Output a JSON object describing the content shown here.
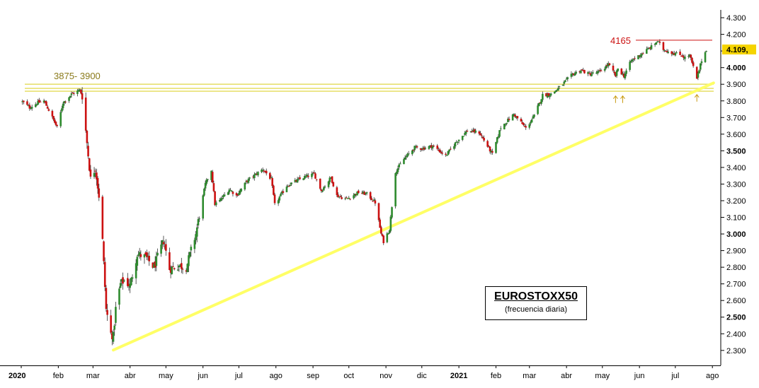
{
  "chart_data": {
    "type": "candlestick",
    "title": "EUROSTOXX50",
    "subtitle": "(frecuencia diaria)",
    "ylim": [
      2210,
      4330
    ],
    "xlim": [
      "2020-01-01",
      "2021-08-08"
    ],
    "yticks": [
      {
        "value": 2300,
        "label": "2.300",
        "bold": false
      },
      {
        "value": 2400,
        "label": "2.400",
        "bold": false
      },
      {
        "value": 2500,
        "label": "2.500",
        "bold": true
      },
      {
        "value": 2600,
        "label": "2.600",
        "bold": false
      },
      {
        "value": 2700,
        "label": "2.700",
        "bold": false
      },
      {
        "value": 2800,
        "label": "2.800",
        "bold": false
      },
      {
        "value": 2900,
        "label": "2.900",
        "bold": false
      },
      {
        "value": 3000,
        "label": "3.000",
        "bold": true
      },
      {
        "value": 3100,
        "label": "3.100",
        "bold": false
      },
      {
        "value": 3200,
        "label": "3.200",
        "bold": false
      },
      {
        "value": 3300,
        "label": "3.300",
        "bold": false
      },
      {
        "value": 3400,
        "label": "3.400",
        "bold": false
      },
      {
        "value": 3500,
        "label": "3.500",
        "bold": true
      },
      {
        "value": 3600,
        "label": "3.600",
        "bold": false
      },
      {
        "value": 3700,
        "label": "3.700",
        "bold": false
      },
      {
        "value": 3800,
        "label": "3.800",
        "bold": false
      },
      {
        "value": 3900,
        "label": "3.900",
        "bold": false
      },
      {
        "value": 4000,
        "label": "4.000",
        "bold": true
      },
      {
        "value": 4100,
        "label": "4.100",
        "bold": false
      },
      {
        "value": 4200,
        "label": "4.200",
        "bold": false
      },
      {
        "value": 4300,
        "label": "4.300",
        "bold": false
      }
    ],
    "xticks": [
      {
        "date": "2020-01-01",
        "label": "2020",
        "bold": true
      },
      {
        "date": "2020-02-01",
        "label": "feb",
        "bold": false
      },
      {
        "date": "2020-03-01",
        "label": "mar",
        "bold": false
      },
      {
        "date": "2020-04-01",
        "label": "abr",
        "bold": false
      },
      {
        "date": "2020-05-01",
        "label": "may",
        "bold": false
      },
      {
        "date": "2020-06-01",
        "label": "jun",
        "bold": false
      },
      {
        "date": "2020-07-01",
        "label": "jul",
        "bold": false
      },
      {
        "date": "2020-08-01",
        "label": "ago",
        "bold": false
      },
      {
        "date": "2020-09-01",
        "label": "sep",
        "bold": false
      },
      {
        "date": "2020-10-01",
        "label": "oct",
        "bold": false
      },
      {
        "date": "2020-11-01",
        "label": "nov",
        "bold": false
      },
      {
        "date": "2020-12-01",
        "label": "dic",
        "bold": false
      },
      {
        "date": "2021-01-01",
        "label": "2021",
        "bold": true
      },
      {
        "date": "2021-02-01",
        "label": "feb",
        "bold": false
      },
      {
        "date": "2021-03-01",
        "label": "mar",
        "bold": false
      },
      {
        "date": "2021-04-01",
        "label": "abr",
        "bold": false
      },
      {
        "date": "2021-05-01",
        "label": "may",
        "bold": false
      },
      {
        "date": "2021-06-01",
        "label": "jun",
        "bold": false
      },
      {
        "date": "2021-07-01",
        "label": "jul",
        "bold": false
      },
      {
        "date": "2021-08-01",
        "label": "ago",
        "bold": false
      }
    ],
    "last_price": {
      "value": 4109,
      "label": "4.109,",
      "color": "#f5d400"
    },
    "support_zone": {
      "label": "3875- 3900",
      "levels": [
        3858,
        3875,
        3900
      ],
      "color": "#e8e070"
    },
    "resistance": {
      "label": "4165",
      "value": 4165,
      "from": "2021-06-15",
      "to": "2021-07-30",
      "color": "#cc1111"
    },
    "trendline": {
      "from": {
        "date": "2020-03-18",
        "value": 2302
      },
      "to": {
        "date": "2021-08-02",
        "value": 3908
      },
      "color": "#ffff66"
    },
    "arrows": [
      {
        "date": "2021-05-12",
        "value": 3830
      },
      {
        "date": "2021-05-18",
        "value": 3830
      },
      {
        "date": "2021-07-19",
        "value": 3838
      }
    ],
    "colors": {
      "up": "#2e8b2e",
      "down": "#cc1111",
      "wick": "#333333",
      "olive_text": "#8a7a1a"
    },
    "waypoints": [
      [
        "2020-01-02",
        3795
      ],
      [
        "2020-01-08",
        3760
      ],
      [
        "2020-01-15",
        3790
      ],
      [
        "2020-01-20",
        3800
      ],
      [
        "2020-01-24",
        3745
      ],
      [
        "2020-01-31",
        3640
      ],
      [
        "2020-02-05",
        3790
      ],
      [
        "2020-02-12",
        3840
      ],
      [
        "2020-02-19",
        3865
      ],
      [
        "2020-02-21",
        3830
      ],
      [
        "2020-02-24",
        3620
      ],
      [
        "2020-02-28",
        3330
      ],
      [
        "2020-03-03",
        3400
      ],
      [
        "2020-03-06",
        3230
      ],
      [
        "2020-03-09",
        2960
      ],
      [
        "2020-03-12",
        2545
      ],
      [
        "2020-03-16",
        2400
      ],
      [
        "2020-03-18",
        2385
      ],
      [
        "2020-03-20",
        2550
      ],
      [
        "2020-03-24",
        2700
      ],
      [
        "2020-03-27",
        2720
      ],
      [
        "2020-04-01",
        2690
      ],
      [
        "2020-04-07",
        2880
      ],
      [
        "2020-04-14",
        2860
      ],
      [
        "2020-04-21",
        2800
      ],
      [
        "2020-04-29",
        2960
      ],
      [
        "2020-05-04",
        2790
      ],
      [
        "2020-05-12",
        2810
      ],
      [
        "2020-05-18",
        2800
      ],
      [
        "2020-05-26",
        3000
      ],
      [
        "2020-06-03",
        3300
      ],
      [
        "2020-06-08",
        3385
      ],
      [
        "2020-06-11",
        3180
      ],
      [
        "2020-06-15",
        3200
      ],
      [
        "2020-06-23",
        3270
      ],
      [
        "2020-06-29",
        3230
      ],
      [
        "2020-07-08",
        3320
      ],
      [
        "2020-07-21",
        3390
      ],
      [
        "2020-07-28",
        3330
      ],
      [
        "2020-07-31",
        3175
      ],
      [
        "2020-08-10",
        3290
      ],
      [
        "2020-08-24",
        3340
      ],
      [
        "2020-09-02",
        3360
      ],
      [
        "2020-09-08",
        3260
      ],
      [
        "2020-09-16",
        3340
      ],
      [
        "2020-09-21",
        3230
      ],
      [
        "2020-09-29",
        3210
      ],
      [
        "2020-10-09",
        3250
      ],
      [
        "2020-10-16",
        3240
      ],
      [
        "2020-10-23",
        3190
      ],
      [
        "2020-10-28",
        3000
      ],
      [
        "2020-10-30",
        2955
      ],
      [
        "2020-11-04",
        3030
      ],
      [
        "2020-11-09",
        3375
      ],
      [
        "2020-11-16",
        3450
      ],
      [
        "2020-11-25",
        3520
      ],
      [
        "2020-12-02",
        3515
      ],
      [
        "2020-12-10",
        3530
      ],
      [
        "2020-12-21",
        3470
      ],
      [
        "2020-12-30",
        3555
      ],
      [
        "2021-01-08",
        3620
      ],
      [
        "2021-01-18",
        3610
      ],
      [
        "2021-01-29",
        3480
      ],
      [
        "2021-02-05",
        3640
      ],
      [
        "2021-02-16",
        3720
      ],
      [
        "2021-02-26",
        3635
      ],
      [
        "2021-03-05",
        3710
      ],
      [
        "2021-03-12",
        3835
      ],
      [
        "2021-03-19",
        3840
      ],
      [
        "2021-03-26",
        3880
      ],
      [
        "2021-04-06",
        3960
      ],
      [
        "2021-04-13",
        3985
      ],
      [
        "2021-04-20",
        3960
      ],
      [
        "2021-04-29",
        3975
      ],
      [
        "2021-05-06",
        4020
      ],
      [
        "2021-05-12",
        3950
      ],
      [
        "2021-05-14",
        3995
      ],
      [
        "2021-05-19",
        3950
      ],
      [
        "2021-05-25",
        4040
      ],
      [
        "2021-06-04",
        4090
      ],
      [
        "2021-06-11",
        4125
      ],
      [
        "2021-06-16",
        4160
      ],
      [
        "2021-06-21",
        4110
      ],
      [
        "2021-06-28",
        4090
      ],
      [
        "2021-07-06",
        4075
      ],
      [
        "2021-07-09",
        4060
      ],
      [
        "2021-07-13",
        4075
      ],
      [
        "2021-07-19",
        3930
      ],
      [
        "2021-07-23",
        4045
      ],
      [
        "2021-07-27",
        4109
      ]
    ]
  }
}
